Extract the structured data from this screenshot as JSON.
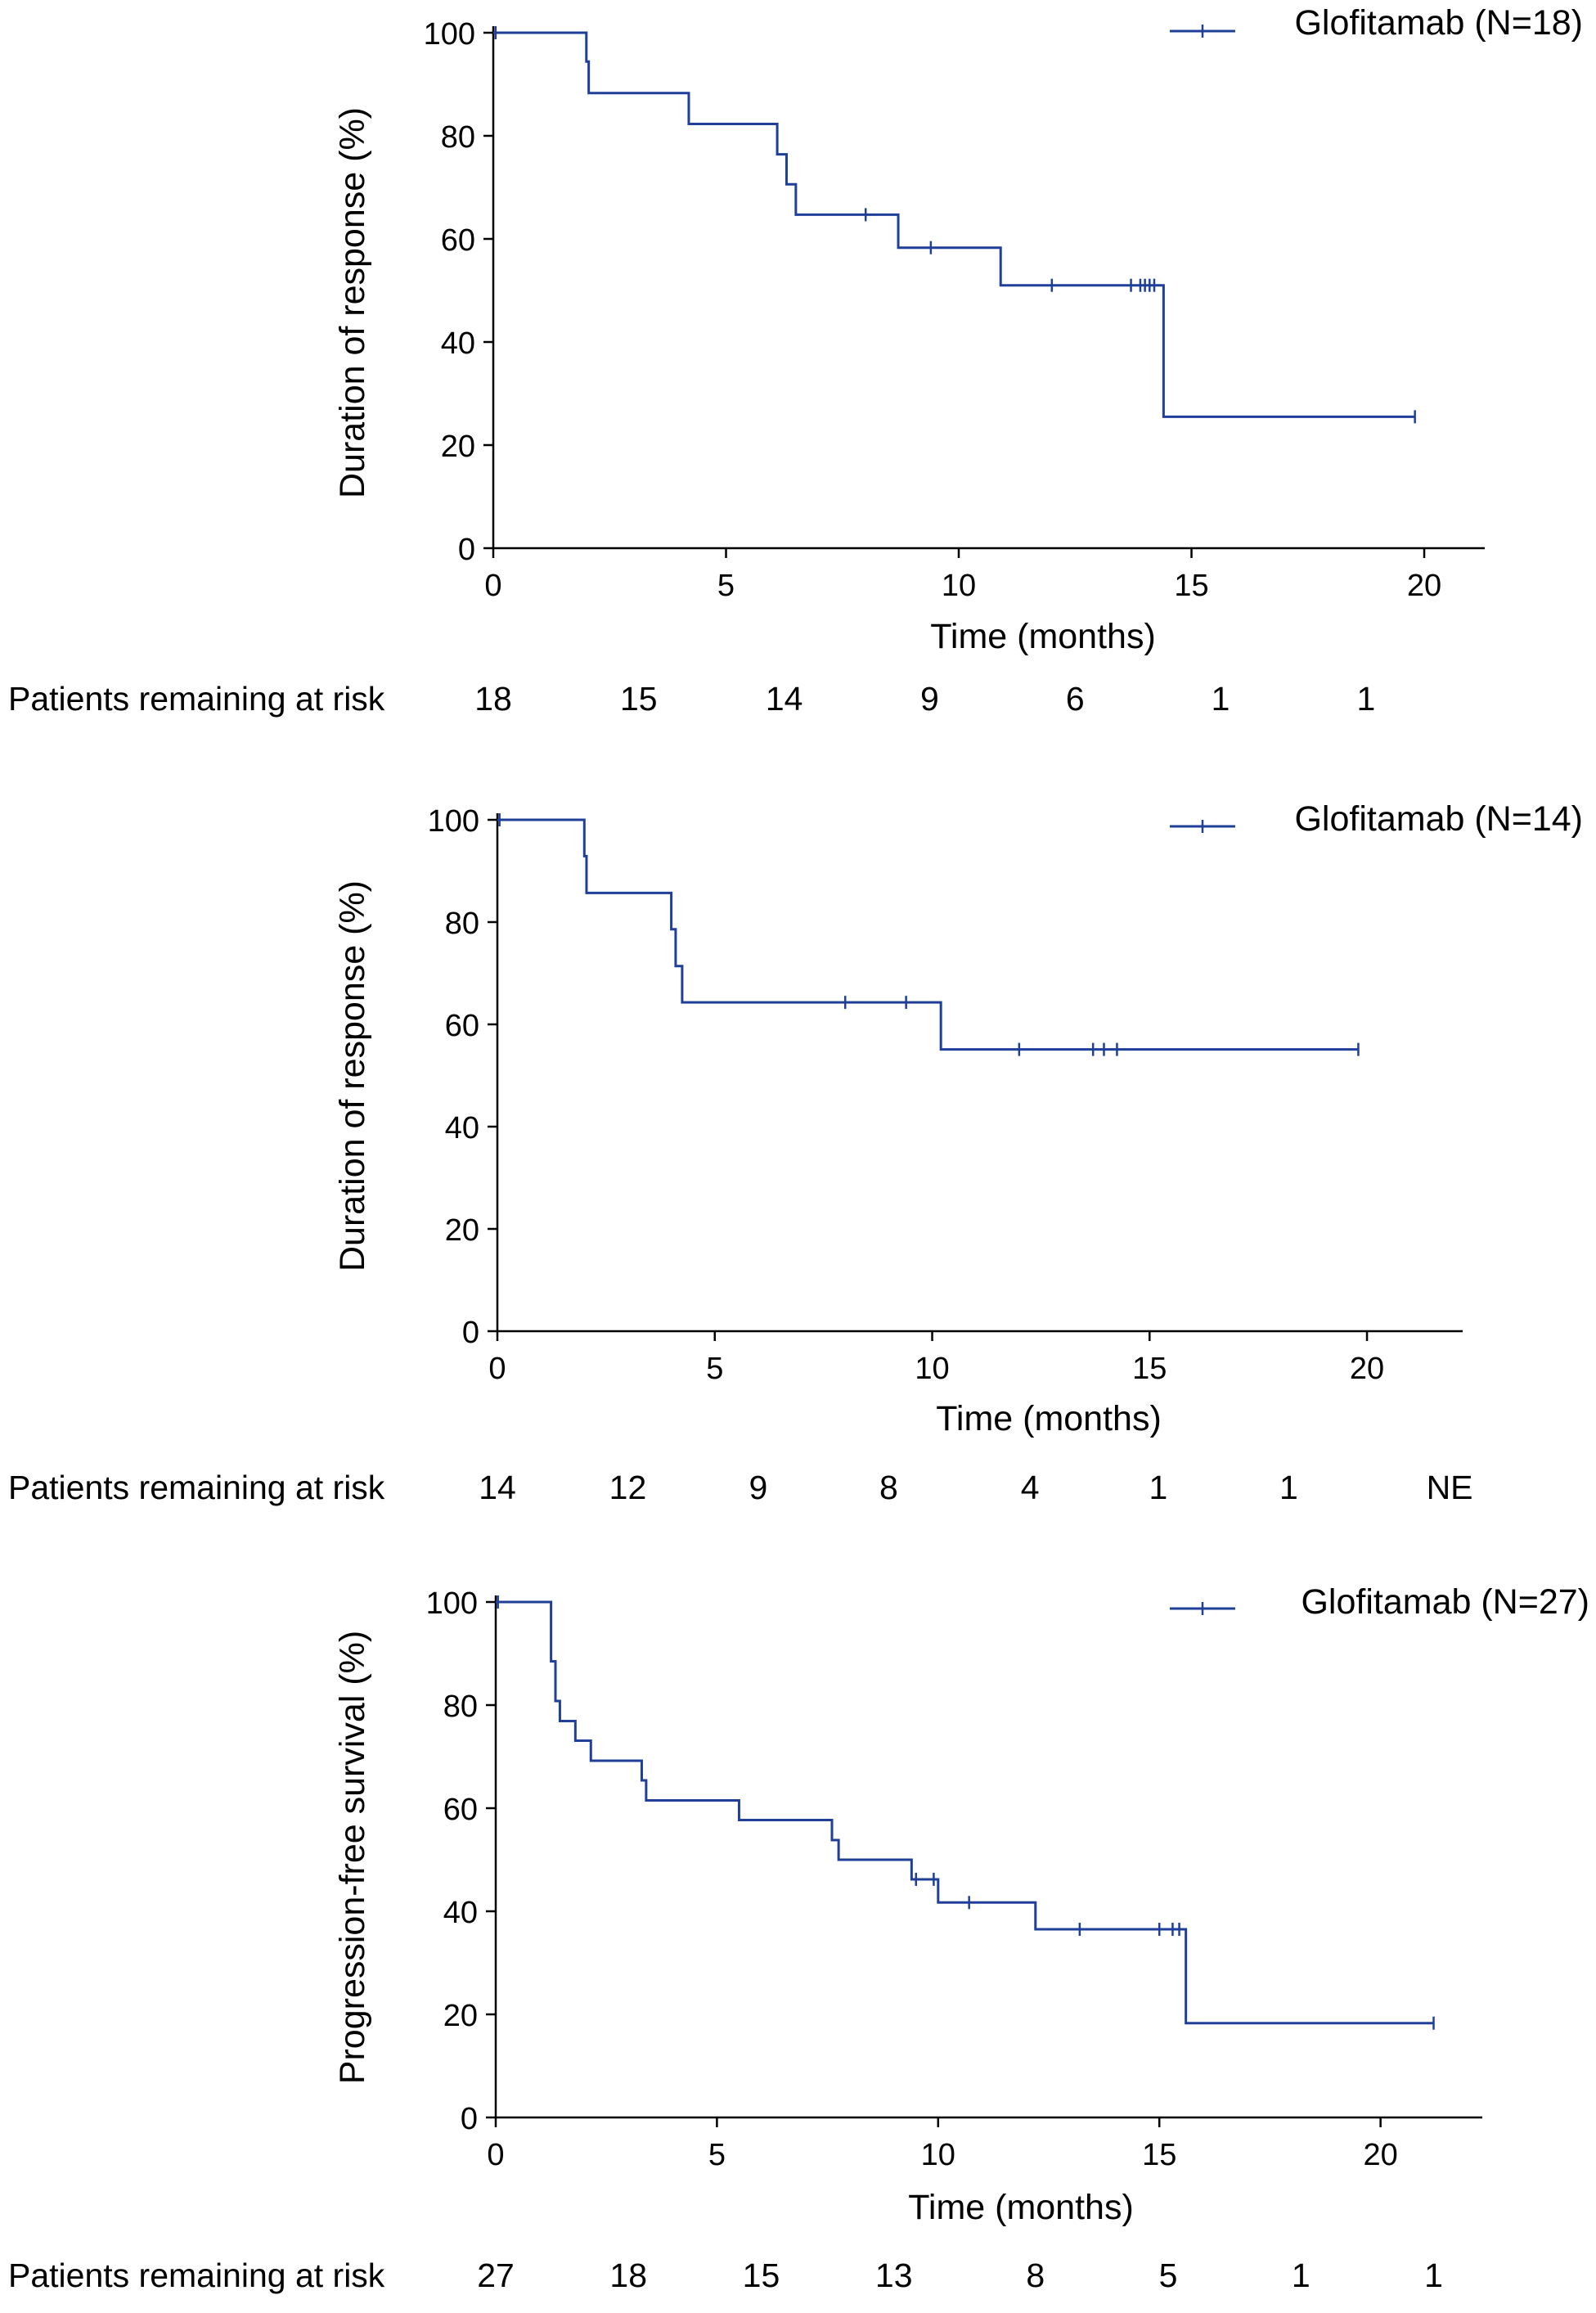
{
  "figure_label": "Kaplan-Meier curves",
  "chart_data": [
    {
      "type": "line",
      "subtype": "kaplan-meier",
      "title": "",
      "xlabel": "Time (months)",
      "ylabel": "Duration of response (%)",
      "xlim": [
        0,
        21.3
      ],
      "ylim": [
        0,
        100
      ],
      "xticks": [
        0,
        5,
        10,
        15,
        20
      ],
      "yticks": [
        0,
        20,
        40,
        60,
        80,
        100
      ],
      "legend": "top-right",
      "color": "#1f3f99",
      "series": [
        {
          "name": "Glofitamab (N=18)",
          "steps": [
            [
              0,
              100
            ],
            [
              2.0,
              94.4
            ],
            [
              2.05,
              88.3
            ],
            [
              4.2,
              82.3
            ],
            [
              6.1,
              76.4
            ],
            [
              6.3,
              70.6
            ],
            [
              6.5,
              64.7
            ],
            [
              8.7,
              58.3
            ],
            [
              10.9,
              51.0
            ],
            [
              14.4,
              25.5
            ]
          ],
          "end_x": 19.8,
          "censored": [
            [
              0.05,
              100
            ],
            [
              8.0,
              64.7
            ],
            [
              9.4,
              58.3
            ],
            [
              12.0,
              51.0
            ],
            [
              13.7,
              51.0
            ],
            [
              13.9,
              51.0
            ],
            [
              14.0,
              51.0
            ],
            [
              14.1,
              51.0
            ],
            [
              14.2,
              51.0
            ],
            [
              19.8,
              25.5
            ]
          ]
        }
      ],
      "risk_table": {
        "label": "Patients remaining at risk",
        "times": [
          0,
          3.125,
          6.25,
          9.375,
          12.5,
          15.625,
          18.75
        ],
        "values": [
          "18",
          "15",
          "14",
          "9",
          "6",
          "1",
          "1"
        ]
      }
    },
    {
      "type": "line",
      "subtype": "kaplan-meier",
      "title": "",
      "xlabel": "Time (months)",
      "ylabel": "Duration of response (%)",
      "xlim": [
        0,
        22.2
      ],
      "ylim": [
        0,
        100
      ],
      "xticks": [
        0,
        5,
        10,
        15,
        20
      ],
      "yticks": [
        0,
        20,
        40,
        60,
        80,
        100
      ],
      "legend": "top-right",
      "color": "#1f3f99",
      "series": [
        {
          "name": "Glofitamab (N=14)",
          "steps": [
            [
              0,
              100
            ],
            [
              2.0,
              92.9
            ],
            [
              2.05,
              85.7
            ],
            [
              4.0,
              78.6
            ],
            [
              4.1,
              71.4
            ],
            [
              4.25,
              64.3
            ],
            [
              10.2,
              55.1
            ]
          ],
          "end_x": 19.8,
          "censored": [
            [
              0.05,
              100
            ],
            [
              8.0,
              64.3
            ],
            [
              9.4,
              64.3
            ],
            [
              12.0,
              55.1
            ],
            [
              13.7,
              55.1
            ],
            [
              13.95,
              55.1
            ],
            [
              14.25,
              55.1
            ],
            [
              19.8,
              55.1
            ]
          ]
        }
      ],
      "risk_table": {
        "label": "Patients remaining at risk",
        "times": [
          0,
          3.0,
          6.0,
          9.0,
          12.25,
          15.2,
          18.2,
          21.9
        ],
        "values": [
          "14",
          "12",
          "9",
          "8",
          "4",
          "1",
          "1",
          "NE"
        ]
      }
    },
    {
      "type": "line",
      "subtype": "kaplan-meier",
      "title": "",
      "xlabel": "Time (months)",
      "ylabel": "Progression-free survival (%)",
      "xlim": [
        0,
        22.3
      ],
      "ylim": [
        0,
        100
      ],
      "xticks": [
        0,
        5,
        10,
        15,
        20
      ],
      "yticks": [
        0,
        20,
        40,
        60,
        80,
        100
      ],
      "legend": "top-right",
      "color": "#1f3f99",
      "series": [
        {
          "name": "Glofitamab (N=27)",
          "steps": [
            [
              0,
              100
            ],
            [
              1.25,
              88.5
            ],
            [
              1.35,
              80.8
            ],
            [
              1.45,
              76.9
            ],
            [
              1.8,
              73.1
            ],
            [
              2.15,
              69.2
            ],
            [
              3.3,
              65.4
            ],
            [
              3.4,
              61.5
            ],
            [
              5.5,
              57.7
            ],
            [
              7.6,
              53.8
            ],
            [
              7.75,
              50.0
            ],
            [
              9.4,
              46.2
            ],
            [
              10.0,
              41.7
            ],
            [
              12.2,
              36.5
            ],
            [
              15.6,
              18.3
            ]
          ],
          "end_x": 21.2,
          "censored": [
            [
              0.05,
              100
            ],
            [
              9.5,
              46.2
            ],
            [
              9.9,
              46.2
            ],
            [
              10.7,
              41.7
            ],
            [
              13.2,
              36.5
            ],
            [
              15.0,
              36.5
            ],
            [
              15.3,
              36.5
            ],
            [
              15.45,
              36.5
            ],
            [
              21.2,
              18.3
            ]
          ]
        }
      ],
      "risk_table": {
        "label": "Patients remaining at risk",
        "times": [
          0,
          3.0,
          6.0,
          9.0,
          12.2,
          15.2,
          18.2,
          21.2
        ],
        "values": [
          "27",
          "18",
          "15",
          "13",
          "8",
          "5",
          "1",
          "1"
        ]
      }
    }
  ]
}
